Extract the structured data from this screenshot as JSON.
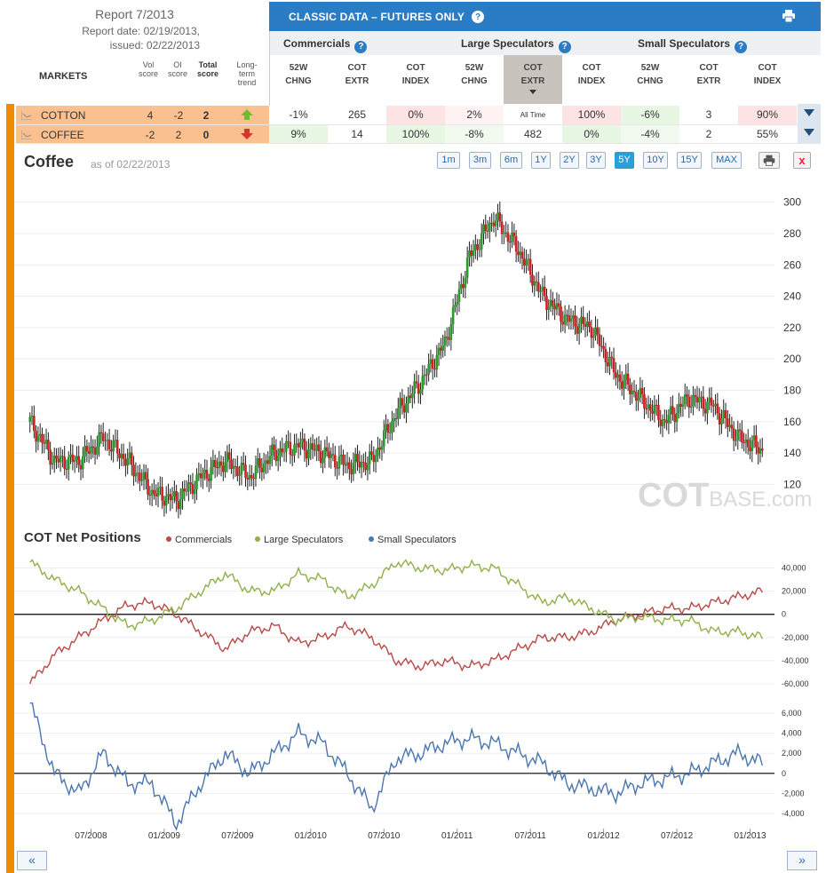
{
  "report": {
    "title": "Report 7/2013",
    "date_line": "Report date: 02/19/2013,",
    "issued_line": "issued: 02/22/2013"
  },
  "markets_header": {
    "markets": "MARKETS",
    "vol_score": [
      "Vol",
      "score"
    ],
    "oi_score": [
      "OI",
      "score"
    ],
    "total_score": [
      "Total",
      "score"
    ],
    "trend": [
      "Long-",
      "term",
      "trend"
    ]
  },
  "classic": {
    "title": "CLASSIC DATA – FUTURES ONLY",
    "help": "?",
    "groups": [
      "Commercials",
      "Large Speculators",
      "Small Speculators"
    ],
    "columns": [
      [
        "52W",
        "CHNG"
      ],
      [
        "COT",
        "EXTR"
      ],
      [
        "COT",
        "INDEX"
      ],
      [
        "52W",
        "CHNG"
      ],
      [
        "COT",
        "EXTR"
      ],
      [
        "COT",
        "INDEX"
      ],
      [
        "52W",
        "CHNG"
      ],
      [
        "COT",
        "EXTR"
      ],
      [
        "COT",
        "INDEX"
      ]
    ],
    "active_column": 4
  },
  "markets": [
    {
      "name": "COTTON",
      "vol": "4",
      "oi": "-2",
      "total": "2",
      "trend": "up",
      "cells": [
        "-1%",
        "265",
        "0%",
        "2%",
        "All Time",
        "100%",
        "-6%",
        "3",
        "90%"
      ],
      "cell_bg": [
        "#fff",
        "#fff",
        "#fde3e3",
        "#fff3f3",
        "#fff",
        "#fde3e3",
        "#e8f7e4",
        "#fff",
        "#fde3e3"
      ]
    },
    {
      "name": "COFFEE",
      "vol": "-2",
      "oi": "2",
      "total": "0",
      "trend": "down",
      "cells": [
        "9%",
        "14",
        "100%",
        "-8%",
        "482",
        "0%",
        "-4%",
        "2",
        "55%"
      ],
      "cell_bg": [
        "#e8f7e4",
        "#fff",
        "#e8f7e4",
        "#f2faf0",
        "#fff",
        "#e8f7e4",
        "#f2faf0",
        "#fff",
        "#fff"
      ]
    }
  ],
  "chart": {
    "title": "Coffee",
    "as_of": "as of 02/22/2013",
    "ranges": [
      "1m",
      "3m",
      "6m",
      "1Y",
      "2Y",
      "3Y",
      "5Y",
      "10Y",
      "15Y",
      "MAX"
    ],
    "active_range": "5Y",
    "close_label": "x",
    "watermark_main": "COT",
    "watermark_sub": "BASE.com",
    "cot_title": "COT Net Positions",
    "legend": [
      {
        "name": "Commercials",
        "color": "#b94a48"
      },
      {
        "name": "Large Speculators",
        "color": "#8fb04a"
      },
      {
        "name": "Small Speculators",
        "color": "#4a76b0"
      }
    ],
    "nav_prev": "«",
    "nav_next": "»"
  },
  "chart_data": [
    {
      "type": "candlestick",
      "title": "Coffee",
      "x": [
        "2008-02",
        "2008-04",
        "2008-06",
        "2008-08",
        "2008-10",
        "2008-12",
        "2009-02",
        "2009-04",
        "2009-06",
        "2009-08",
        "2009-10",
        "2009-12",
        "2010-02",
        "2010-04",
        "2010-06",
        "2010-08",
        "2010-10",
        "2010-12",
        "2011-02",
        "2011-04",
        "2011-06",
        "2011-08",
        "2011-10",
        "2011-12",
        "2012-02",
        "2012-04",
        "2012-06",
        "2012-08",
        "2012-10",
        "2012-12",
        "2013-02"
      ],
      "close": [
        160,
        135,
        135,
        150,
        135,
        115,
        110,
        125,
        135,
        125,
        140,
        145,
        140,
        132,
        135,
        165,
        185,
        210,
        265,
        290,
        270,
        240,
        225,
        220,
        190,
        175,
        160,
        175,
        170,
        150,
        142
      ],
      "ylim": [
        105,
        310
      ],
      "yticks": [
        120,
        140,
        160,
        180,
        200,
        220,
        240,
        260,
        280,
        300
      ],
      "xticks": [
        "07/2008",
        "01/2009",
        "07/2009",
        "01/2010",
        "07/2010",
        "01/2011",
        "07/2011",
        "01/2012",
        "07/2012",
        "01/2013"
      ],
      "colors": {
        "up": "#2a9a2a",
        "down": "#d02020"
      }
    },
    {
      "type": "line",
      "title": "COT Net Positions",
      "x": [
        "2008-02",
        "2008-04",
        "2008-06",
        "2008-08",
        "2008-10",
        "2008-12",
        "2009-02",
        "2009-04",
        "2009-06",
        "2009-08",
        "2009-10",
        "2009-12",
        "2010-02",
        "2010-04",
        "2010-06",
        "2010-08",
        "2010-10",
        "2010-12",
        "2011-02",
        "2011-04",
        "2011-06",
        "2011-08",
        "2011-10",
        "2011-12",
        "2012-02",
        "2012-04",
        "2012-06",
        "2012-08",
        "2012-10",
        "2012-12",
        "2013-02"
      ],
      "series": [
        {
          "name": "Commercials",
          "values": [
            -60000,
            -35000,
            -20000,
            -5000,
            8000,
            10000,
            0,
            -15000,
            -30000,
            -15000,
            -10000,
            -25000,
            -20000,
            -10000,
            -20000,
            -40000,
            -45000,
            -40000,
            -45000,
            -40000,
            -30000,
            -20000,
            -20000,
            -15000,
            -5000,
            0,
            5000,
            5000,
            10000,
            15000,
            20000
          ]
        },
        {
          "name": "Large Speculators",
          "values": [
            45000,
            30000,
            20000,
            5000,
            -10000,
            -5000,
            5000,
            20000,
            35000,
            20000,
            20000,
            35000,
            30000,
            15000,
            25000,
            45000,
            40000,
            38000,
            42000,
            40000,
            25000,
            10000,
            15000,
            5000,
            -5000,
            -2000,
            -5000,
            -5000,
            -15000,
            -15000,
            -20000
          ]
        },
        {
          "name": "Small Speculators",
          "values": [
            7000,
            0,
            -2000,
            2000,
            -1000,
            -1000,
            -5000,
            -1000,
            2000,
            0,
            2000,
            4000,
            3000,
            0,
            -3500,
            1500,
            2000,
            3000,
            3500,
            3000,
            2000,
            1000,
            -1000,
            -1500,
            -2000,
            -1000,
            -500,
            0,
            1000,
            2000,
            1000
          ]
        }
      ],
      "panels": [
        {
          "series": [
            "Commercials",
            "Large Speculators"
          ],
          "ylim": [
            -70000,
            55000
          ],
          "yticks": [
            -60000,
            -40000,
            -20000,
            0,
            20000,
            40000
          ]
        },
        {
          "series": [
            "Small Speculators"
          ],
          "ylim": [
            -5500,
            7500
          ],
          "yticks": [
            -4000,
            -2000,
            0,
            2000,
            4000,
            6000
          ]
        }
      ],
      "ytick_labels_a": [
        "40,000",
        "20,000",
        "0",
        "-20,000",
        "-40,000",
        "-60,000"
      ],
      "ytick_labels_b": [
        "6,000",
        "4,000",
        "2,000",
        "0",
        "-2,000",
        "-4,000"
      ],
      "xticks": [
        "07/2008",
        "01/2009",
        "07/2009",
        "01/2010",
        "07/2010",
        "01/2011",
        "07/2011",
        "01/2012",
        "07/2012",
        "01/2013"
      ]
    }
  ]
}
